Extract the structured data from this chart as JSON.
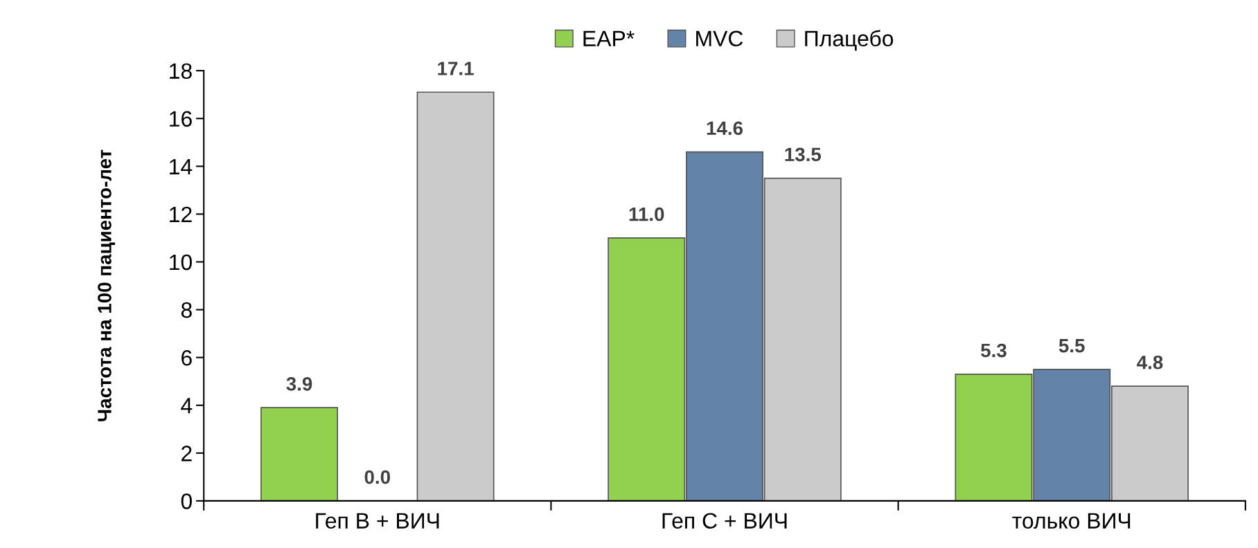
{
  "chart_data": {
    "type": "bar",
    "ylabel": "Частота на 100 пациенто-лет",
    "categories": [
      "Геп В + ВИЧ",
      "Геп С + ВИЧ",
      "только ВИЧ"
    ],
    "series": [
      {
        "name": "EAP*",
        "color": "#92d050",
        "values": [
          3.9,
          11.0,
          5.3
        ],
        "value_labels": [
          "3.9",
          "11.0",
          "5.3"
        ]
      },
      {
        "name": "MVC",
        "color": "#6383a8",
        "values": [
          0.0,
          14.6,
          5.5
        ],
        "value_labels": [
          "0.0",
          "14.6",
          "5.5"
        ]
      },
      {
        "name": "Плацебо",
        "color": "#cbcbcb",
        "values": [
          17.1,
          13.5,
          4.8
        ],
        "value_labels": [
          "17.1",
          "13.5",
          "4.8"
        ]
      }
    ],
    "ylim": [
      0,
      18
    ],
    "yticks": [
      0,
      2,
      4,
      6,
      8,
      10,
      12,
      14,
      16,
      18
    ],
    "grid": false,
    "legend": "top"
  }
}
